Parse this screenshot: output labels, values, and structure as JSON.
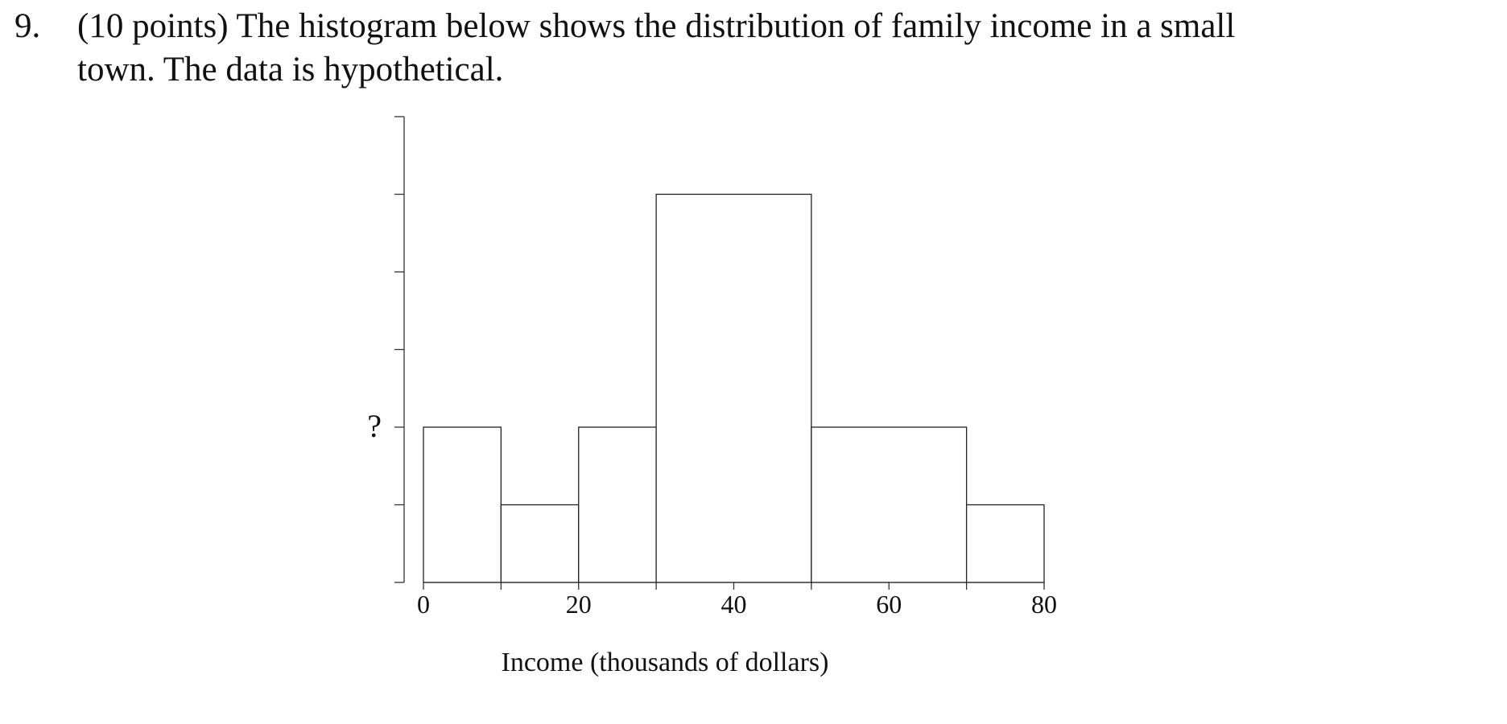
{
  "question": {
    "number": "9.",
    "lines": [
      "(10 points) The histogram below shows the distribution of family income in a small",
      "town. The data is hypothetical."
    ]
  },
  "chart_data": {
    "type": "histogram",
    "bins": [
      0,
      10,
      20,
      30,
      50,
      70,
      80
    ],
    "values": [
      2,
      1,
      2,
      5,
      2,
      1
    ],
    "xlabel": "Income (thousands of dollars)",
    "xlim": [
      0,
      80
    ],
    "xticks": [
      0,
      {
        "value": 10,
        "label": null
      },
      20,
      {
        "value": 30,
        "label": null
      },
      40,
      {
        "value": 50,
        "label": null
      },
      60,
      {
        "value": 70,
        "label": null
      },
      80
    ],
    "ylim": [
      0,
      6
    ],
    "yticks": [
      {
        "value": 0,
        "label": null
      },
      {
        "value": 1,
        "label": null
      },
      {
        "value": 2,
        "label": "?"
      },
      {
        "value": 3,
        "label": null
      },
      {
        "value": 4,
        "label": null
      },
      {
        "value": 5,
        "label": null
      },
      {
        "value": 6,
        "label": null
      }
    ]
  }
}
